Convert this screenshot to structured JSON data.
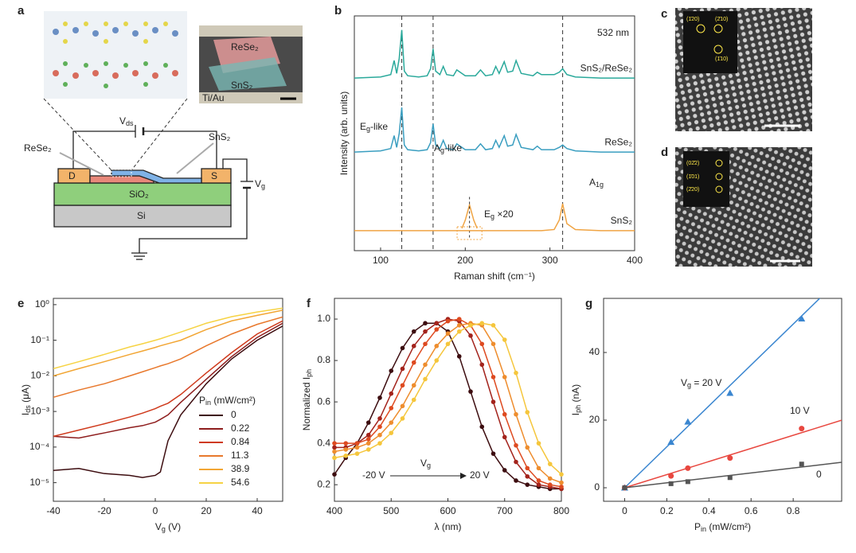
{
  "panel_labels": [
    "a",
    "b",
    "c",
    "d",
    "e",
    "f",
    "g"
  ],
  "device": {
    "inset_labels": [
      "ReSe₂",
      "SnS₂",
      "Ti/Au"
    ],
    "vds": [
      "V",
      "ds"
    ],
    "vg": [
      "V",
      "g"
    ],
    "rese2": "ReSe₂",
    "sns2": "SnS₂",
    "drain": "D",
    "source": "S",
    "oxide": "SiO₂",
    "substrate": "Si"
  },
  "micrographs": {
    "c": {
      "fft_labels": [
        "(1̄20)",
        "(2̄10)",
        "(1̄10)"
      ]
    },
    "d": {
      "fft_labels": [
        "(02̄2)",
        "(1̄01)",
        "(2̄20)"
      ]
    }
  },
  "chart_data": [
    {
      "type": "line",
      "xlabel": [
        "Raman shift (cm⁻¹)"
      ],
      "ylabel": [
        "Intensity (arb. units)"
      ],
      "xlim": [
        69,
        400
      ],
      "ylim": [
        0,
        10
      ],
      "xticks": [
        100,
        200,
        300,
        400
      ],
      "x": [
        69,
        100,
        112,
        116,
        119,
        122,
        125,
        128,
        132,
        145,
        155,
        159,
        162,
        165,
        170,
        174,
        178,
        186,
        190,
        200,
        212,
        218,
        224,
        232,
        236,
        240,
        246,
        250,
        256,
        260,
        266,
        280,
        285,
        290,
        305,
        311,
        315,
        320,
        330,
        360,
        400
      ],
      "series": [
        {
          "name": "SnS₂/ReSe₂",
          "color": "#2aa99b",
          "values": [
            7.35,
            7.4,
            7.5,
            8.1,
            7.55,
            8.2,
            9.4,
            7.65,
            7.45,
            7.4,
            7.45,
            7.75,
            8.6,
            7.65,
            7.5,
            7.85,
            7.5,
            7.45,
            7.7,
            7.45,
            7.45,
            7.7,
            7.45,
            7.5,
            7.85,
            7.55,
            8.05,
            7.6,
            7.65,
            8.1,
            7.55,
            7.45,
            7.6,
            7.5,
            7.5,
            7.6,
            7.75,
            7.5,
            7.4,
            7.35,
            7.35
          ]
        },
        {
          "name": "ReSe₂",
          "color": "#3a9ec0",
          "values": [
            4.2,
            4.25,
            4.35,
            4.9,
            4.4,
            5.0,
            6.1,
            4.5,
            4.3,
            4.25,
            4.3,
            4.6,
            5.4,
            4.5,
            4.35,
            4.7,
            4.35,
            4.3,
            4.55,
            4.3,
            4.3,
            4.55,
            4.3,
            4.35,
            4.7,
            4.4,
            4.9,
            4.45,
            4.5,
            4.95,
            4.4,
            4.3,
            4.45,
            4.3,
            4.3,
            4.4,
            4.5,
            4.35,
            4.25,
            4.2,
            4.2
          ]
        },
        {
          "name": "SnS₂",
          "color": "#f0a443",
          "values": [
            0.85,
            0.85,
            0.85,
            0.85,
            0.85,
            0.85,
            0.85,
            0.85,
            0.85,
            0.85,
            0.85,
            0.85,
            0.85,
            0.85,
            0.85,
            0.85,
            0.85,
            0.85,
            0.85,
            0.85,
            0.85,
            0.85,
            0.85,
            0.85,
            0.85,
            0.85,
            0.85,
            0.85,
            0.85,
            0.85,
            0.85,
            0.85,
            0.85,
            0.85,
            0.9,
            1.3,
            2.0,
            1.15,
            0.9,
            0.85,
            0.85
          ]
        }
      ],
      "inset_curve": {
        "color": "#f0a443",
        "x": [
          196,
          200,
          205,
          210,
          214
        ],
        "values": [
          0.95,
          1.3,
          1.95,
          1.3,
          0.95
        ]
      },
      "vlines": [
        125,
        162,
        315
      ],
      "annotations": [
        {
          "text": [
            "532 nm"
          ],
          "color": "#222"
        },
        {
          "text": [
            "E",
            "g",
            "-like"
          ],
          "color": "#3a9ec0"
        },
        {
          "text": [
            "A",
            "g",
            "-like"
          ],
          "color": "#3a9ec0"
        },
        {
          "text": [
            "A",
            "1g"
          ],
          "color": "#f0a443"
        },
        {
          "text": [
            "E",
            "g",
            " ×20"
          ],
          "color": "#f0a443"
        }
      ]
    },
    {
      "type": "line",
      "log_y": true,
      "xlabel": [
        "V",
        "g",
        " (V)"
      ],
      "ylabel": [
        "I",
        "ds",
        " (μA)"
      ],
      "xlim": [
        -40,
        50
      ],
      "ylim": [
        3e-06,
        1.5
      ],
      "xticks": [
        -40,
        -20,
        0,
        20,
        40
      ],
      "yticks": [
        {
          "value": 1e-05,
          "label": "10⁻⁵"
        },
        {
          "value": 0.0001,
          "label": "10⁻⁴"
        },
        {
          "value": 0.001,
          "label": "10⁻³"
        },
        {
          "value": 0.01,
          "label": "10⁻²"
        },
        {
          "value": 0.1,
          "label": "10⁻¹"
        },
        {
          "value": 1,
          "label": "10⁰"
        }
      ],
      "x": [
        -40,
        -30,
        -20,
        -10,
        -5,
        0,
        2,
        5,
        10,
        20,
        30,
        40,
        50
      ],
      "legend": "lower right",
      "legend_title": [
        "P",
        "in",
        " (mW/cm²)"
      ],
      "series": [
        {
          "name": "0",
          "color": "#3d0d10",
          "values": [
            2.2e-05,
            2.5e-05,
            1.8e-05,
            1.6e-05,
            1.4e-05,
            1.6e-05,
            2e-05,
            0.00015,
            0.0008,
            0.006,
            0.03,
            0.1,
            0.25
          ]
        },
        {
          "name": "0.22",
          "color": "#8e1d1d",
          "values": [
            0.0002,
            0.00018,
            0.00025,
            0.00035,
            0.0004,
            0.0005,
            0.0006,
            0.0008,
            0.0018,
            0.008,
            0.035,
            0.12,
            0.3
          ]
        },
        {
          "name": "0.84",
          "color": "#cf3a1c",
          "values": [
            0.0002,
            0.0003,
            0.00045,
            0.0007,
            0.0009,
            0.0012,
            0.0014,
            0.0017,
            0.003,
            0.012,
            0.045,
            0.15,
            0.35
          ]
        },
        {
          "name": "11.3",
          "color": "#e8782c",
          "values": [
            0.0025,
            0.004,
            0.006,
            0.01,
            0.013,
            0.017,
            0.019,
            0.022,
            0.03,
            0.07,
            0.15,
            0.28,
            0.45
          ]
        },
        {
          "name": "38.9",
          "color": "#f2a634",
          "values": [
            0.01,
            0.016,
            0.025,
            0.04,
            0.05,
            0.063,
            0.07,
            0.08,
            0.1,
            0.2,
            0.35,
            0.5,
            0.7
          ]
        },
        {
          "name": "54.6",
          "color": "#f6d344",
          "values": [
            0.016,
            0.025,
            0.04,
            0.065,
            0.08,
            0.1,
            0.11,
            0.13,
            0.17,
            0.3,
            0.46,
            0.62,
            0.8
          ]
        }
      ]
    },
    {
      "type": "line",
      "markers": true,
      "xlabel": [
        "λ (nm)"
      ],
      "ylabel": [
        "Normalized I",
        "ph"
      ],
      "xlim": [
        400,
        800
      ],
      "ylim": [
        0.12,
        1.1
      ],
      "xticks": [
        400,
        500,
        600,
        700,
        800
      ],
      "yticks": [
        0.2,
        0.4,
        0.6,
        0.8,
        {
          "value": 1,
          "label": "1.0"
        }
      ],
      "x": [
        400,
        420,
        440,
        460,
        480,
        500,
        520,
        540,
        560,
        580,
        600,
        620,
        640,
        660,
        680,
        700,
        720,
        740,
        760,
        780,
        800
      ],
      "series": [
        {
          "color": "#3d0d10",
          "values": [
            0.25,
            0.33,
            0.4,
            0.5,
            0.62,
            0.75,
            0.86,
            0.94,
            0.98,
            0.98,
            0.94,
            0.82,
            0.65,
            0.48,
            0.35,
            0.27,
            0.22,
            0.2,
            0.19,
            0.18,
            0.18
          ]
        },
        {
          "color": "#a3231c",
          "values": [
            0.38,
            0.38,
            0.4,
            0.44,
            0.52,
            0.64,
            0.76,
            0.87,
            0.94,
            0.98,
            1.0,
            0.99,
            0.92,
            0.78,
            0.6,
            0.43,
            0.31,
            0.24,
            0.2,
            0.19,
            0.18
          ]
        },
        {
          "color": "#de4a20",
          "values": [
            0.4,
            0.4,
            0.4,
            0.42,
            0.48,
            0.57,
            0.68,
            0.79,
            0.88,
            0.95,
            0.99,
            1.0,
            0.97,
            0.88,
            0.72,
            0.54,
            0.39,
            0.28,
            0.22,
            0.2,
            0.19
          ]
        },
        {
          "color": "#ee8d2e",
          "values": [
            0.36,
            0.37,
            0.38,
            0.4,
            0.44,
            0.5,
            0.58,
            0.68,
            0.78,
            0.87,
            0.93,
            0.97,
            0.98,
            0.97,
            0.88,
            0.72,
            0.54,
            0.38,
            0.28,
            0.23,
            0.21
          ]
        },
        {
          "color": "#f5c63c",
          "values": [
            0.33,
            0.34,
            0.35,
            0.37,
            0.4,
            0.45,
            0.52,
            0.61,
            0.71,
            0.8,
            0.88,
            0.94,
            0.97,
            0.98,
            0.97,
            0.9,
            0.74,
            0.55,
            0.4,
            0.3,
            0.25
          ]
        }
      ],
      "annotations": [
        {
          "text": [
            "-20 V"
          ],
          "color": "#222"
        },
        {
          "text": [
            "V",
            "g"
          ],
          "color": "#222"
        },
        {
          "text": [
            "20 V"
          ],
          "color": "#222"
        }
      ]
    },
    {
      "type": "scatter",
      "xlabel": [
        "P",
        "in",
        " (mW/cm²)"
      ],
      "ylabel": [
        "I",
        "ph",
        " (nA)"
      ],
      "xlim": [
        -0.1,
        1.03
      ],
      "ylim": [
        -4,
        56
      ],
      "xticks": [
        0,
        0.2,
        0.4,
        0.6,
        0.8
      ],
      "yticks": [
        0,
        20,
        40
      ],
      "x": [
        0,
        0.22,
        0.3,
        0.5,
        0.84
      ],
      "series": [
        {
          "color": "#3a86d0",
          "marker": "triangle",
          "fit_slope": 60.5,
          "values": [
            0,
            13.5,
            19.5,
            28,
            50
          ]
        },
        {
          "color": "#e8473f",
          "marker": "circle",
          "fit_slope": 19.4,
          "values": [
            0,
            3.5,
            5.8,
            8.8,
            17.5
          ]
        },
        {
          "color": "#555555",
          "marker": "square",
          "fit_slope": 7.3,
          "values": [
            0,
            1.2,
            1.8,
            3,
            7
          ]
        }
      ],
      "annotations": [
        {
          "text": [
            "V",
            "g",
            " = 20 V"
          ],
          "color": "#3a86d0"
        },
        {
          "text": [
            "10 V"
          ],
          "color": "#e8473f"
        },
        {
          "text": [
            "0"
          ],
          "color": "#777"
        }
      ]
    }
  ]
}
